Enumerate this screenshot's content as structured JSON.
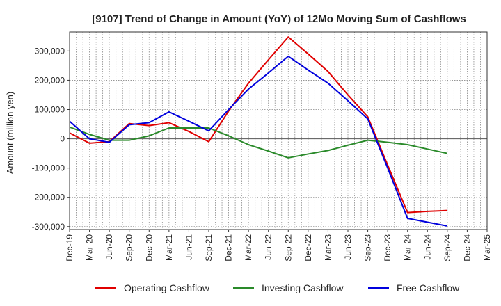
{
  "chart_data": {
    "type": "line",
    "title": "[9107]  Trend of Change in Amount (YoY) of 12Mo Moving Sum of Cashflows",
    "xlabel": "",
    "ylabel": "Amount (million yen)",
    "ylim": [
      -310000,
      365000
    ],
    "yticks": [
      300000,
      200000,
      100000,
      0,
      -100000,
      -200000,
      -300000
    ],
    "ytick_labels": [
      "300,000",
      "200,000",
      "100,000",
      "0",
      "-100,000",
      "-200,000",
      "-300,000"
    ],
    "categories": [
      "Dec-19",
      "Mar-20",
      "Jun-20",
      "Sep-20",
      "Dec-20",
      "Mar-21",
      "Jun-21",
      "Sep-21",
      "Dec-21",
      "Mar-22",
      "Jun-22",
      "Sep-22",
      "Dec-22",
      "Mar-23",
      "Jun-23",
      "Sep-23",
      "Dec-23",
      "Mar-24",
      "Jun-24",
      "Sep-24",
      "Dec-24",
      "Mar-25"
    ],
    "grid": true,
    "legend_position": "bottom",
    "series": [
      {
        "name": "Operating Cashflow",
        "color": "#e00000",
        "values": [
          20000,
          -15000,
          -10000,
          52000,
          45000,
          55000,
          25000,
          -10000,
          95000,
          190000,
          270000,
          348000,
          290000,
          230000,
          150000,
          75000,
          -90000,
          -252000,
          -248000,
          -245000,
          null,
          null
        ]
      },
      {
        "name": "Investing Cashflow",
        "color": "#2a8a2a",
        "values": [
          40000,
          15000,
          -5000,
          -5000,
          10000,
          37000,
          37000,
          37000,
          10000,
          -20000,
          -42000,
          -65000,
          -52000,
          -40000,
          -22000,
          -5000,
          -12000,
          -20000,
          -35000,
          -50000,
          null,
          null
        ]
      },
      {
        "name": "Free Cashflow",
        "color": "#0000dd",
        "values": [
          60000,
          0,
          -12000,
          48000,
          55000,
          92000,
          60000,
          27000,
          100000,
          170000,
          225000,
          282000,
          235000,
          190000,
          130000,
          68000,
          -100000,
          -272000,
          -285000,
          -298000,
          null,
          null
        ]
      }
    ]
  }
}
